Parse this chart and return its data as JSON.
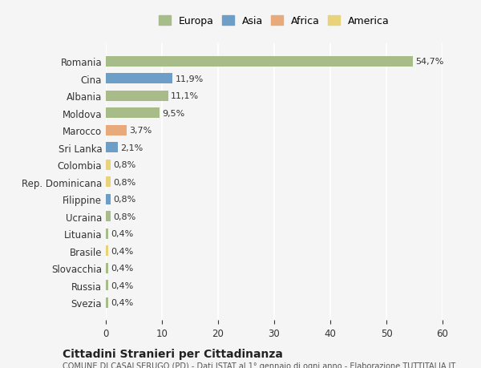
{
  "countries": [
    "Romania",
    "Cina",
    "Albania",
    "Moldova",
    "Marocco",
    "Sri Lanka",
    "Colombia",
    "Rep. Dominicana",
    "Filippine",
    "Ucraina",
    "Lituania",
    "Brasile",
    "Slovacchia",
    "Russia",
    "Svezia"
  ],
  "values": [
    54.7,
    11.9,
    11.1,
    9.5,
    3.7,
    2.1,
    0.8,
    0.8,
    0.8,
    0.8,
    0.4,
    0.4,
    0.4,
    0.4,
    0.4
  ],
  "labels": [
    "54,7%",
    "11,9%",
    "11,1%",
    "9,5%",
    "3,7%",
    "2,1%",
    "0,8%",
    "0,8%",
    "0,8%",
    "0,8%",
    "0,4%",
    "0,4%",
    "0,4%",
    "0,4%",
    "0,4%"
  ],
  "continents": [
    "Europa",
    "Asia",
    "Europa",
    "Europa",
    "Africa",
    "Asia",
    "America",
    "America",
    "Asia",
    "Europa",
    "Europa",
    "America",
    "Europa",
    "Europa",
    "Europa"
  ],
  "continent_colors": {
    "Europa": "#a8bc8a",
    "Asia": "#6d9ec7",
    "Africa": "#e8a97b",
    "America": "#e8d27a"
  },
  "legend_order": [
    "Europa",
    "Asia",
    "Africa",
    "America"
  ],
  "title_bold": "Cittadini Stranieri per Cittadinanza",
  "title_sub": "COMUNE DI CASALSERUGO (PD) - Dati ISTAT al 1° gennaio di ogni anno - Elaborazione TUTTITALIA.IT",
  "xlim": [
    0,
    60
  ],
  "xticks": [
    0,
    10,
    20,
    30,
    40,
    50,
    60
  ],
  "background_color": "#f5f5f5",
  "grid_color": "#ffffff",
  "bar_height": 0.6
}
